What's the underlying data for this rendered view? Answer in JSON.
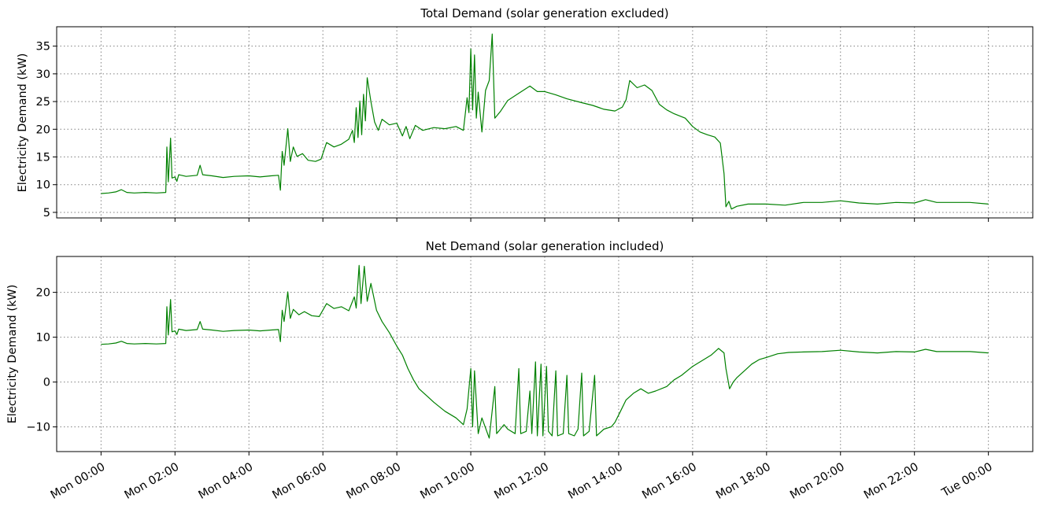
{
  "figure": {
    "x_tick_labels": [
      "Mon 00:00",
      "Mon 02:00",
      "Mon 04:00",
      "Mon 06:00",
      "Mon 08:00",
      "Mon 10:00",
      "Mon 12:00",
      "Mon 14:00",
      "Mon 16:00",
      "Mon 18:00",
      "Mon 20:00",
      "Mon 22:00",
      "Tue 00:00"
    ]
  },
  "chart_data": [
    {
      "type": "line",
      "title": "Total Demand (solar generation excluded)",
      "xlabel": "",
      "ylabel": "Electricity Demand (kW)",
      "x_unit": "hours since Mon 00:00",
      "xlim": [
        -1.2,
        25.2
      ],
      "ylim": [
        4,
        38.5
      ],
      "yticks": [
        5,
        10,
        15,
        20,
        25,
        30,
        35
      ],
      "grid": true,
      "series": [
        {
          "color": "#008000",
          "points": [
            [
              0,
              8.4
            ],
            [
              0.2,
              8.5
            ],
            [
              0.4,
              8.7
            ],
            [
              0.55,
              9.1
            ],
            [
              0.7,
              8.6
            ],
            [
              0.9,
              8.5
            ],
            [
              1.2,
              8.6
            ],
            [
              1.5,
              8.5
            ],
            [
              1.75,
              8.6
            ],
            [
              1.78,
              16.8
            ],
            [
              1.82,
              10.5
            ],
            [
              1.88,
              18.4
            ],
            [
              1.92,
              11.2
            ],
            [
              2.0,
              11.4
            ],
            [
              2.05,
              10.6
            ],
            [
              2.1,
              11.8
            ],
            [
              2.3,
              11.5
            ],
            [
              2.6,
              11.7
            ],
            [
              2.68,
              13.5
            ],
            [
              2.75,
              11.8
            ],
            [
              3.0,
              11.6
            ],
            [
              3.3,
              11.3
            ],
            [
              3.6,
              11.5
            ],
            [
              4.0,
              11.6
            ],
            [
              4.3,
              11.4
            ],
            [
              4.6,
              11.6
            ],
            [
              4.8,
              11.7
            ],
            [
              4.85,
              9.0
            ],
            [
              4.9,
              16.0
            ],
            [
              4.95,
              13.5
            ],
            [
              5.05,
              20.1
            ],
            [
              5.12,
              14.2
            ],
            [
              5.2,
              16.8
            ],
            [
              5.3,
              15.1
            ],
            [
              5.45,
              15.6
            ],
            [
              5.6,
              14.4
            ],
            [
              5.8,
              14.2
            ],
            [
              5.95,
              14.6
            ],
            [
              6.1,
              17.6
            ],
            [
              6.3,
              16.8
            ],
            [
              6.5,
              17.3
            ],
            [
              6.7,
              18.2
            ],
            [
              6.8,
              19.8
            ],
            [
              6.85,
              17.6
            ],
            [
              6.9,
              23.9
            ],
            [
              6.95,
              18.5
            ],
            [
              7.0,
              25.1
            ],
            [
              7.05,
              19.0
            ],
            [
              7.1,
              26.3
            ],
            [
              7.15,
              21.5
            ],
            [
              7.2,
              29.3
            ],
            [
              7.3,
              25.0
            ],
            [
              7.4,
              21.3
            ],
            [
              7.5,
              19.8
            ],
            [
              7.6,
              21.8
            ],
            [
              7.8,
              20.8
            ],
            [
              8.0,
              21.1
            ],
            [
              8.15,
              18.8
            ],
            [
              8.25,
              20.5
            ],
            [
              8.35,
              18.3
            ],
            [
              8.5,
              20.7
            ],
            [
              8.7,
              19.8
            ],
            [
              9.0,
              20.3
            ],
            [
              9.3,
              20.1
            ],
            [
              9.6,
              20.5
            ],
            [
              9.8,
              19.8
            ],
            [
              9.9,
              25.7
            ],
            [
              9.95,
              23.0
            ],
            [
              10.0,
              34.5
            ],
            [
              10.05,
              23.5
            ],
            [
              10.1,
              33.4
            ],
            [
              10.15,
              22.0
            ],
            [
              10.2,
              26.7
            ],
            [
              10.3,
              19.5
            ],
            [
              10.4,
              27.0
            ],
            [
              10.5,
              28.8
            ],
            [
              10.58,
              37.2
            ],
            [
              10.65,
              22.0
            ],
            [
              10.8,
              23.2
            ],
            [
              11.0,
              25.2
            ],
            [
              11.3,
              26.5
            ],
            [
              11.6,
              27.8
            ],
            [
              11.8,
              26.8
            ],
            [
              12.0,
              26.8
            ],
            [
              12.3,
              26.2
            ],
            [
              12.6,
              25.5
            ],
            [
              13.0,
              24.8
            ],
            [
              13.3,
              24.3
            ],
            [
              13.6,
              23.6
            ],
            [
              13.9,
              23.3
            ],
            [
              14.1,
              24.0
            ],
            [
              14.2,
              25.3
            ],
            [
              14.3,
              28.8
            ],
            [
              14.5,
              27.5
            ],
            [
              14.7,
              28.0
            ],
            [
              14.9,
              27.0
            ],
            [
              15.1,
              24.5
            ],
            [
              15.3,
              23.5
            ],
            [
              15.5,
              22.8
            ],
            [
              15.8,
              22.0
            ],
            [
              16.0,
              20.5
            ],
            [
              16.2,
              19.5
            ],
            [
              16.4,
              19.0
            ],
            [
              16.6,
              18.6
            ],
            [
              16.75,
              17.5
            ],
            [
              16.85,
              12.0
            ],
            [
              16.9,
              6.0
            ],
            [
              16.98,
              7.0
            ],
            [
              17.05,
              5.6
            ],
            [
              17.2,
              6.1
            ],
            [
              17.5,
              6.5
            ],
            [
              18.0,
              6.5
            ],
            [
              18.5,
              6.3
            ],
            [
              19.0,
              6.8
            ],
            [
              19.5,
              6.8
            ],
            [
              20.0,
              7.1
            ],
            [
              20.5,
              6.7
            ],
            [
              21.0,
              6.5
            ],
            [
              21.5,
              6.8
            ],
            [
              22.0,
              6.7
            ],
            [
              22.3,
              7.3
            ],
            [
              22.6,
              6.8
            ],
            [
              23.0,
              6.8
            ],
            [
              23.5,
              6.8
            ],
            [
              24.0,
              6.5
            ]
          ]
        }
      ]
    },
    {
      "type": "line",
      "title": "Net Demand (solar generation included)",
      "xlabel": "",
      "ylabel": "Electricity Demand (kW)",
      "x_unit": "hours since Mon 00:00",
      "xlim": [
        -1.2,
        25.2
      ],
      "ylim": [
        -15.5,
        28
      ],
      "yticks": [
        -10,
        0,
        10,
        20
      ],
      "grid": true,
      "series": [
        {
          "color": "#008000",
          "points": [
            [
              0,
              8.4
            ],
            [
              0.2,
              8.5
            ],
            [
              0.4,
              8.7
            ],
            [
              0.55,
              9.1
            ],
            [
              0.7,
              8.6
            ],
            [
              0.9,
              8.5
            ],
            [
              1.2,
              8.6
            ],
            [
              1.5,
              8.5
            ],
            [
              1.75,
              8.6
            ],
            [
              1.78,
              16.8
            ],
            [
              1.82,
              10.5
            ],
            [
              1.88,
              18.4
            ],
            [
              1.92,
              11.2
            ],
            [
              2.0,
              11.4
            ],
            [
              2.05,
              10.6
            ],
            [
              2.1,
              11.8
            ],
            [
              2.3,
              11.5
            ],
            [
              2.6,
              11.7
            ],
            [
              2.68,
              13.5
            ],
            [
              2.75,
              11.8
            ],
            [
              3.0,
              11.6
            ],
            [
              3.3,
              11.3
            ],
            [
              3.6,
              11.5
            ],
            [
              4.0,
              11.6
            ],
            [
              4.3,
              11.4
            ],
            [
              4.6,
              11.6
            ],
            [
              4.8,
              11.7
            ],
            [
              4.85,
              9.0
            ],
            [
              4.9,
              16.0
            ],
            [
              4.95,
              13.5
            ],
            [
              5.05,
              20.1
            ],
            [
              5.12,
              14.2
            ],
            [
              5.2,
              16.2
            ],
            [
              5.35,
              15.0
            ],
            [
              5.5,
              15.7
            ],
            [
              5.7,
              14.8
            ],
            [
              5.9,
              14.6
            ],
            [
              6.1,
              17.5
            ],
            [
              6.3,
              16.4
            ],
            [
              6.5,
              16.8
            ],
            [
              6.7,
              15.9
            ],
            [
              6.85,
              19.0
            ],
            [
              6.9,
              16.5
            ],
            [
              6.98,
              26.0
            ],
            [
              7.03,
              17.5
            ],
            [
              7.12,
              25.8
            ],
            [
              7.2,
              18.0
            ],
            [
              7.3,
              22.0
            ],
            [
              7.45,
              16.0
            ],
            [
              7.6,
              13.5
            ],
            [
              7.8,
              11.0
            ],
            [
              8.0,
              8.0
            ],
            [
              8.15,
              6.0
            ],
            [
              8.3,
              3.0
            ],
            [
              8.45,
              0.5
            ],
            [
              8.6,
              -1.5
            ],
            [
              8.8,
              -3.0
            ],
            [
              9.0,
              -4.5
            ],
            [
              9.3,
              -6.5
            ],
            [
              9.6,
              -8.0
            ],
            [
              9.8,
              -9.5
            ],
            [
              9.9,
              -6.0
            ],
            [
              10.0,
              3.0
            ],
            [
              10.05,
              -10.0
            ],
            [
              10.1,
              2.5
            ],
            [
              10.2,
              -11.5
            ],
            [
              10.3,
              -8.0
            ],
            [
              10.5,
              -12.5
            ],
            [
              10.65,
              -1.0
            ],
            [
              10.7,
              -11.5
            ],
            [
              10.9,
              -9.5
            ],
            [
              11.0,
              -10.5
            ],
            [
              11.2,
              -11.5
            ],
            [
              11.3,
              3.0
            ],
            [
              11.35,
              -11.5
            ],
            [
              11.5,
              -11.0
            ],
            [
              11.6,
              -2.0
            ],
            [
              11.65,
              -11.5
            ],
            [
              11.75,
              4.5
            ],
            [
              11.8,
              -12.0
            ],
            [
              11.9,
              4.0
            ],
            [
              11.95,
              -12.0
            ],
            [
              12.05,
              3.5
            ],
            [
              12.1,
              -11.0
            ],
            [
              12.2,
              -12.0
            ],
            [
              12.3,
              2.5
            ],
            [
              12.35,
              -12.0
            ],
            [
              12.5,
              -11.5
            ],
            [
              12.6,
              1.5
            ],
            [
              12.65,
              -11.5
            ],
            [
              12.8,
              -12.0
            ],
            [
              12.9,
              -10.5
            ],
            [
              13.0,
              2.0
            ],
            [
              13.05,
              -12.0
            ],
            [
              13.2,
              -11.0
            ],
            [
              13.35,
              1.5
            ],
            [
              13.4,
              -12.0
            ],
            [
              13.6,
              -10.5
            ],
            [
              13.8,
              -10.0
            ],
            [
              13.9,
              -9.0
            ],
            [
              14.05,
              -6.5
            ],
            [
              14.2,
              -4.0
            ],
            [
              14.4,
              -2.5
            ],
            [
              14.6,
              -1.5
            ],
            [
              14.8,
              -2.5
            ],
            [
              15.0,
              -2.0
            ],
            [
              15.3,
              -1.0
            ],
            [
              15.5,
              0.5
            ],
            [
              15.7,
              1.5
            ],
            [
              16.0,
              3.5
            ],
            [
              16.3,
              5.0
            ],
            [
              16.5,
              6.0
            ],
            [
              16.7,
              7.5
            ],
            [
              16.85,
              6.5
            ],
            [
              16.9,
              3.0
            ],
            [
              17.0,
              -1.5
            ],
            [
              17.1,
              0.0
            ],
            [
              17.2,
              1.0
            ],
            [
              17.4,
              2.5
            ],
            [
              17.6,
              4.0
            ],
            [
              17.8,
              5.0
            ],
            [
              18.0,
              5.5
            ],
            [
              18.3,
              6.3
            ],
            [
              18.6,
              6.6
            ],
            [
              19.0,
              6.7
            ],
            [
              19.5,
              6.8
            ],
            [
              20.0,
              7.1
            ],
            [
              20.5,
              6.7
            ],
            [
              21.0,
              6.5
            ],
            [
              21.5,
              6.8
            ],
            [
              22.0,
              6.7
            ],
            [
              22.3,
              7.3
            ],
            [
              22.6,
              6.8
            ],
            [
              23.0,
              6.8
            ],
            [
              23.5,
              6.8
            ],
            [
              24.0,
              6.5
            ]
          ]
        }
      ]
    }
  ]
}
